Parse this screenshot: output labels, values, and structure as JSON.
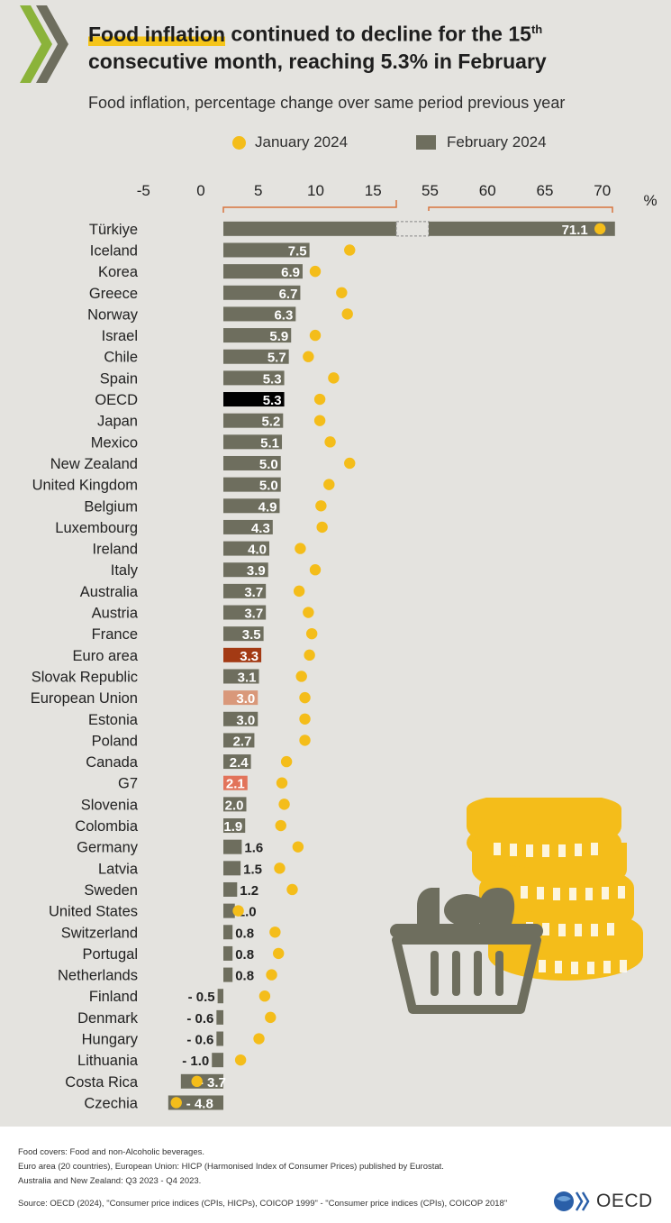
{
  "header": {
    "title_highlight": "Food inflation",
    "title_rest_1": " continued to decline for the 15",
    "title_sup": "th",
    "title_rest_2": " consecutive month, reaching 5.3% in February",
    "subtitle": "Food inflation, percentage change over same period previous year"
  },
  "legend": {
    "jan_label": "January 2024",
    "feb_label": "February 2024"
  },
  "colors": {
    "bar": "#6e6e5e",
    "oecd_bar": "#000000",
    "euro_area_bar": "#a33a14",
    "european_union_bar": "#d9987a",
    "g7_bar": "#e2735a",
    "jan_dot": "#f4bd1a",
    "axis_bracket": "#d8743e",
    "background": "#e4e3df",
    "coin": "#f4bd1a",
    "basket": "#6e6e5e"
  },
  "chart_data": {
    "type": "bar",
    "orientation": "horizontal",
    "unit": "%",
    "x_ticks_left": [
      "-5",
      "0",
      "5",
      "10",
      "15"
    ],
    "x_ticks_right": [
      "55",
      "60",
      "65",
      "70"
    ],
    "xlim_left": [
      -5,
      17
    ],
    "xlim_right": [
      53,
      72
    ],
    "axis_break": true,
    "grid": false,
    "legend_position": "top",
    "series": [
      {
        "name": "February 2024",
        "marker": "bar",
        "values": [
          71.1,
          7.5,
          6.9,
          6.7,
          6.3,
          5.9,
          5.7,
          5.3,
          5.3,
          5.2,
          5.1,
          5.0,
          5.0,
          4.9,
          4.3,
          4.0,
          3.9,
          3.7,
          3.7,
          3.5,
          3.3,
          3.1,
          3.0,
          3.0,
          2.7,
          2.4,
          2.1,
          2.0,
          1.9,
          1.6,
          1.5,
          1.2,
          1.0,
          0.8,
          0.8,
          0.8,
          -0.5,
          -0.6,
          -0.6,
          -1.0,
          -3.7,
          -4.8
        ]
      },
      {
        "name": "January 2024",
        "marker": "dot",
        "values": [
          69.8,
          11.0,
          8.0,
          10.3,
          10.8,
          8.0,
          7.4,
          9.6,
          8.4,
          8.4,
          9.3,
          11.0,
          9.2,
          8.5,
          8.6,
          6.7,
          8.0,
          6.6,
          7.4,
          7.7,
          7.5,
          6.8,
          7.1,
          7.1,
          7.1,
          5.5,
          5.1,
          5.3,
          5.0,
          6.5,
          4.9,
          6.0,
          1.3,
          4.5,
          4.8,
          4.2,
          3.6,
          4.1,
          3.1,
          1.5,
          -2.3,
          -4.1
        ]
      }
    ],
    "categories": [
      "Türkiye",
      "Iceland",
      "Korea",
      "Greece",
      "Norway",
      "Israel",
      "Chile",
      "Spain",
      "OECD",
      "Japan",
      "Mexico",
      "New Zealand",
      "United Kingdom",
      "Belgium",
      "Luxembourg",
      "Ireland",
      "Italy",
      "Australia",
      "Austria",
      "France",
      "Euro area",
      "Slovak Republic",
      "European Union",
      "Estonia",
      "Poland",
      "Canada",
      "G7",
      "Slovenia",
      "Colombia",
      "Germany",
      "Latvia",
      "Sweden",
      "United States",
      "Switzerland",
      "Portugal",
      "Netherlands",
      "Finland",
      "Denmark",
      "Hungary",
      "Lithuania",
      "Costa Rica",
      "Czechia"
    ],
    "value_labels": [
      "71.1",
      "7.5",
      "6.9",
      "6.7",
      "6.3",
      "5.9",
      "5.7",
      "5.3",
      "5.3",
      "5.2",
      "5.1",
      "5.0",
      "5.0",
      "4.9",
      "4.3",
      "4.0",
      "3.9",
      "3.7",
      "3.7",
      "3.5",
      "3.3",
      "3.1",
      "3.0",
      "3.0",
      "2.7",
      "2.4",
      "2.1",
      "2.0",
      "1.9",
      "1.6",
      "1.5",
      "1.2",
      "1.0",
      "0.8",
      "0.8",
      "0.8",
      "- 0.5",
      "- 0.6",
      "- 0.6",
      "- 1.0",
      "- 3.7",
      "- 4.8"
    ]
  },
  "footer": {
    "note_1": "Food covers: Food and non-Alcoholic beverages.",
    "note_2": "Euro area (20 countries), European Union: HICP (Harmonised Index of Consumer Prices) published by Eurostat.",
    "note_3": "Australia and New Zealand: Q3 2023 - Q4 2023.",
    "source": "Source: OECD (2024), \"Consumer price indices (CPIs, HICPs), COICOP 1999\" - \"Consumer price indices (CPIs), COICOP 2018\"",
    "logo_text": "OECD"
  }
}
